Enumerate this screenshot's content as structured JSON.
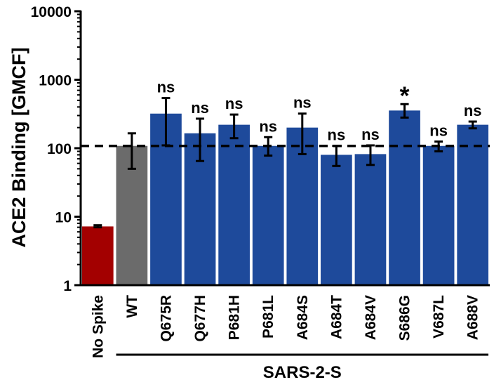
{
  "chart_data": {
    "type": "bar",
    "title": "",
    "ylabel": "ACE2 Binding [GMCF]",
    "xlabel": "",
    "yscale": "log",
    "ylim": [
      1,
      10000
    ],
    "yticks": [
      1,
      10,
      100,
      1000,
      10000
    ],
    "ytick_labels": [
      "1",
      "10",
      "100",
      "1000",
      "10000"
    ],
    "categories": [
      "No Spike",
      "WT",
      "Q675R",
      "Q677H",
      "P681H",
      "P681L",
      "A684S",
      "A684T",
      "A684V",
      "S686G",
      "V687L",
      "A688V"
    ],
    "values": [
      7.2,
      108,
      320,
      165,
      220,
      108,
      200,
      80,
      82,
      355,
      108,
      220
    ],
    "error_low": [
      7.0,
      50,
      110,
      65,
      140,
      78,
      82,
      55,
      57,
      280,
      90,
      195
    ],
    "error_high": [
      7.5,
      165,
      540,
      270,
      310,
      145,
      320,
      108,
      110,
      440,
      125,
      245
    ],
    "significance": [
      "",
      "",
      "ns",
      "ns",
      "ns",
      "ns",
      "ns",
      "ns",
      "ns",
      "*",
      "ns",
      "ns"
    ],
    "bar_colors": [
      "#A30000",
      "#6B6B6B",
      "#1E4A9B",
      "#1E4A9B",
      "#1E4A9B",
      "#1E4A9B",
      "#1E4A9B",
      "#1E4A9B",
      "#1E4A9B",
      "#1E4A9B",
      "#1E4A9B",
      "#1E4A9B"
    ],
    "reference_line": {
      "value": 108,
      "style": "dashed"
    },
    "group_label": {
      "text": "SARS-2-S",
      "from": "WT",
      "to": "A688V"
    }
  }
}
